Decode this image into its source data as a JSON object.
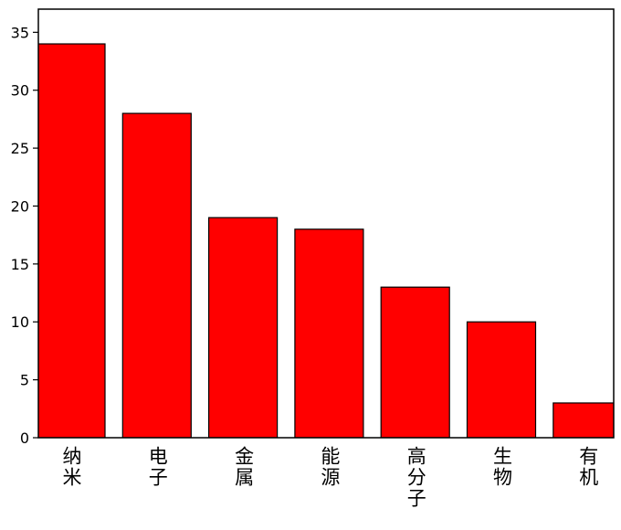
{
  "chart_data": {
    "type": "bar",
    "categories": [
      "纳米",
      "电子",
      "金属",
      "能源",
      "高分子",
      "生物",
      "有机"
    ],
    "values": [
      34,
      28,
      19,
      18,
      13,
      10,
      3
    ],
    "color": "#ff0000",
    "ylim": [
      0,
      37
    ],
    "yticks": [
      0,
      5,
      10,
      15,
      20,
      25,
      30,
      35
    ],
    "grid": false
  }
}
